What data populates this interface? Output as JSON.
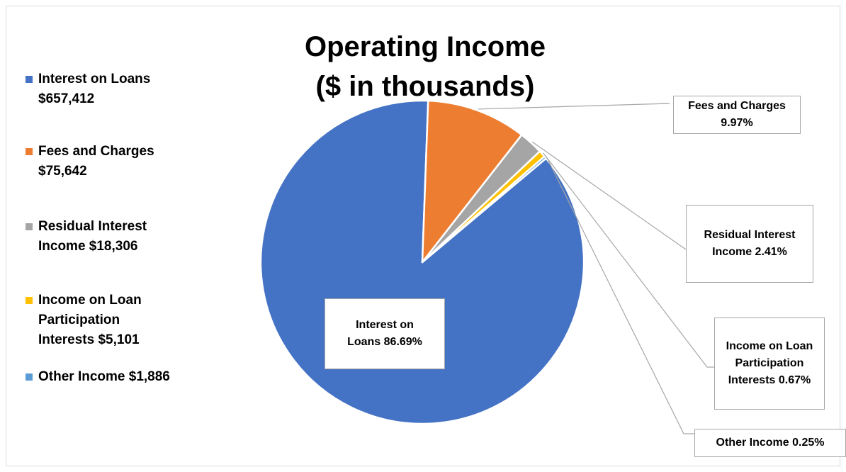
{
  "chart_data": {
    "type": "pie",
    "title": "Operating Income",
    "subtitle": "($ in thousands)",
    "start_angle_deg": 50,
    "slices": [
      {
        "name": "Interest on Loans",
        "value": 657412,
        "percent": 86.69,
        "color": "#4472C4",
        "legend_label": "Interest on Loans\n$657,412",
        "data_label": "Interest on\nLoans 86.69%"
      },
      {
        "name": "Fees and Charges",
        "value": 75642,
        "percent": 9.97,
        "color": "#ED7D31",
        "legend_label": "Fees and Charges\n$75,642",
        "data_label": "Fees and Charges\n9.97%"
      },
      {
        "name": "Residual Interest Income",
        "value": 18306,
        "percent": 2.41,
        "color": "#A5A5A5",
        "legend_label": "Residual Interest\nIncome  $18,306",
        "data_label": "Residual Interest\nIncome 2.41%"
      },
      {
        "name": "Income on Loan Participation Interests",
        "value": 5101,
        "percent": 0.67,
        "color": "#FFC000",
        "legend_label": "Income on Loan\nParticipation\nInterests  $5,101",
        "data_label": "Income on Loan\nParticipation\nInterests 0.67%"
      },
      {
        "name": "Other Income",
        "value": 1886,
        "percent": 0.25,
        "color": "#5B9BD5",
        "legend_label": "Other Income  $1,886",
        "data_label": "Other Income 0.25%"
      }
    ],
    "legend_position": "left"
  }
}
